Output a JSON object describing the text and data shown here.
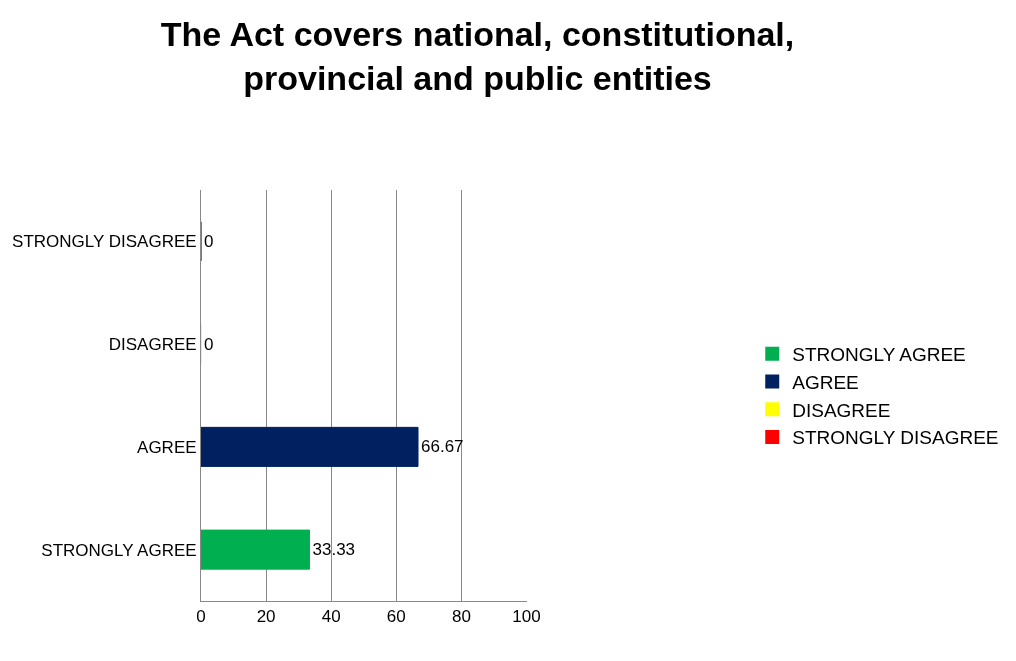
{
  "chart_data": {
    "type": "bar",
    "orientation": "horizontal",
    "title": "The Act covers national, constitutional,\nprovincial and public entities",
    "categories": [
      "STRONGLY DISAGREE",
      "DISAGREE",
      "AGREE",
      "STRONGLY AGREE"
    ],
    "series": [
      {
        "name": "STRONGLY AGREE",
        "color": "#00b050",
        "values": [
          null,
          null,
          null,
          33.33
        ]
      },
      {
        "name": "AGREE",
        "color": "#002060",
        "values": [
          null,
          null,
          66.67,
          null
        ]
      },
      {
        "name": "DISAGREE",
        "color": "#ffff00",
        "values": [
          null,
          0,
          null,
          null
        ]
      },
      {
        "name": "STRONGLY DISAGREE",
        "color": "#ff0000",
        "values": [
          0,
          null,
          null,
          null
        ]
      }
    ],
    "xlim": [
      0,
      100
    ],
    "xticks": [
      0,
      20,
      40,
      60,
      80,
      100
    ],
    "grid": "x",
    "legend": "right",
    "data_labels": true
  }
}
